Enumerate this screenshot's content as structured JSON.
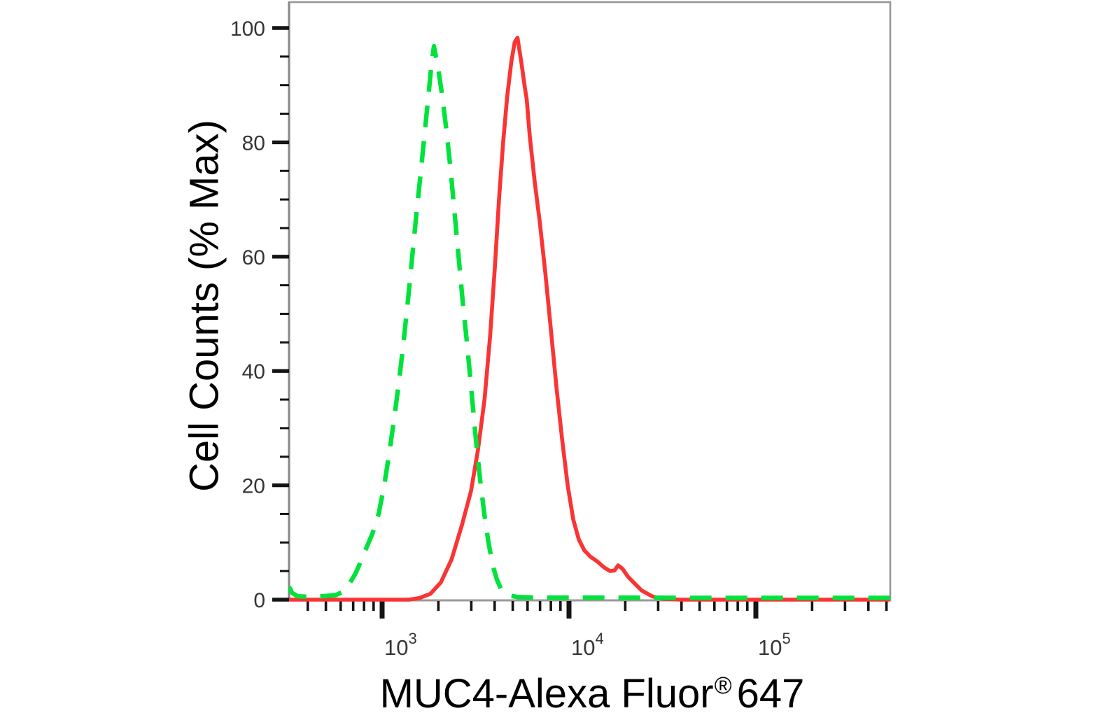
{
  "chart_data": {
    "type": "line",
    "title": "",
    "xlabel": {
      "main": "MUC4-Alexa Fluor",
      "registered": "®",
      "suffix": "647"
    },
    "ylabel": "Cell Counts (% Max)",
    "x_scale": "log",
    "x_range": [
      318,
      520000
    ],
    "y_range": [
      0,
      104.5
    ],
    "grid": false,
    "legend_position": "none",
    "x_axis": {
      "major_tick_values": [
        1000,
        10000,
        100000
      ],
      "major_tick_labels": [
        {
          "base": "10",
          "exponent": "3"
        },
        {
          "base": "10",
          "exponent": "4"
        },
        {
          "base": "10",
          "exponent": "5"
        }
      ],
      "minor_tick_values": [
        400,
        500,
        600,
        700,
        800,
        900,
        2000,
        3000,
        4000,
        5000,
        6000,
        7000,
        8000,
        9000,
        20000,
        30000,
        40000,
        50000,
        60000,
        70000,
        80000,
        90000,
        200000,
        300000,
        400000,
        500000
      ]
    },
    "y_axis": {
      "major_tick_values": [
        0,
        20,
        40,
        60,
        80,
        100
      ],
      "major_tick_labels": [
        "0",
        "20",
        "40",
        "60",
        "80",
        "100"
      ],
      "minor_tick_step": 5
    },
    "series": [
      {
        "name": "red-solid-curve",
        "color": "#fa3434",
        "line_style": "solid",
        "points": [
          [
            318,
            0
          ],
          [
            1400,
            0
          ],
          [
            1590,
            0.3
          ],
          [
            1810,
            1
          ],
          [
            2060,
            3
          ],
          [
            2350,
            7
          ],
          [
            2670,
            13
          ],
          [
            2990,
            19
          ],
          [
            3250,
            26
          ],
          [
            3530,
            35
          ],
          [
            3780,
            46
          ],
          [
            4010,
            58
          ],
          [
            4220,
            70
          ],
          [
            4440,
            80
          ],
          [
            4670,
            88
          ],
          [
            4910,
            94
          ],
          [
            5120,
            97.5
          ],
          [
            5300,
            98.3
          ],
          [
            5560,
            94
          ],
          [
            5810,
            89.5
          ],
          [
            5940,
            87.5
          ],
          [
            6170,
            81
          ],
          [
            6560,
            73
          ],
          [
            6980,
            66
          ],
          [
            7480,
            57
          ],
          [
            8010,
            47
          ],
          [
            8580,
            37
          ],
          [
            9190,
            28
          ],
          [
            9840,
            20
          ],
          [
            10540,
            14
          ],
          [
            11290,
            10.5
          ],
          [
            12090,
            8.6
          ],
          [
            13030,
            7.5
          ],
          [
            14140,
            6.7
          ],
          [
            15460,
            5.6
          ],
          [
            16590,
            5.0
          ],
          [
            17510,
            5.1
          ],
          [
            18320,
            6.0
          ],
          [
            19330,
            5.4
          ],
          [
            20710,
            4.0
          ],
          [
            22180,
            3.0
          ],
          [
            24480,
            1.6
          ],
          [
            27780,
            0.6
          ],
          [
            31540,
            0.15
          ],
          [
            39070,
            0
          ],
          [
            520000,
            0
          ]
        ]
      },
      {
        "name": "green-dashed-curve",
        "color": "#00e23c",
        "line_style": "dashed",
        "points": [
          [
            318,
            2.2
          ],
          [
            330,
            1.2
          ],
          [
            352,
            0.6
          ],
          [
            430,
            0.45
          ],
          [
            566,
            0.8
          ],
          [
            628,
            1.5
          ],
          [
            672,
            2.9
          ],
          [
            721,
            4.6
          ],
          [
            772,
            6.8
          ],
          [
            827,
            9.2
          ],
          [
            886,
            11.5
          ],
          [
            958,
            15
          ],
          [
            1026,
            20
          ],
          [
            1090,
            25.5
          ],
          [
            1158,
            31.5
          ],
          [
            1230,
            38
          ],
          [
            1307,
            45.5
          ],
          [
            1376,
            52.5
          ],
          [
            1449,
            60
          ],
          [
            1526,
            67.5
          ],
          [
            1607,
            74.5
          ],
          [
            1693,
            82
          ],
          [
            1767,
            88
          ],
          [
            1829,
            93
          ],
          [
            1893,
            96.8
          ],
          [
            1994,
            93
          ],
          [
            2099,
            88
          ],
          [
            2211,
            82
          ],
          [
            2328,
            75
          ],
          [
            2452,
            67
          ],
          [
            2582,
            59
          ],
          [
            2719,
            51
          ],
          [
            2863,
            44
          ],
          [
            3017,
            36
          ],
          [
            3176,
            28
          ],
          [
            3345,
            21
          ],
          [
            3523,
            15
          ],
          [
            3710,
            10
          ],
          [
            3906,
            6
          ],
          [
            4114,
            3.5
          ],
          [
            4332,
            1.8
          ],
          [
            4642,
            0.8
          ],
          [
            5329,
            0.45
          ],
          [
            7000,
            0.35
          ],
          [
            20000,
            0.35
          ],
          [
            60000,
            0.3
          ],
          [
            200000,
            0.3
          ],
          [
            520000,
            0.3
          ]
        ]
      }
    ]
  },
  "colors": {
    "frame": "#989898",
    "tick": "#141414",
    "tick_label": "#363636",
    "background": "#ffffff"
  }
}
